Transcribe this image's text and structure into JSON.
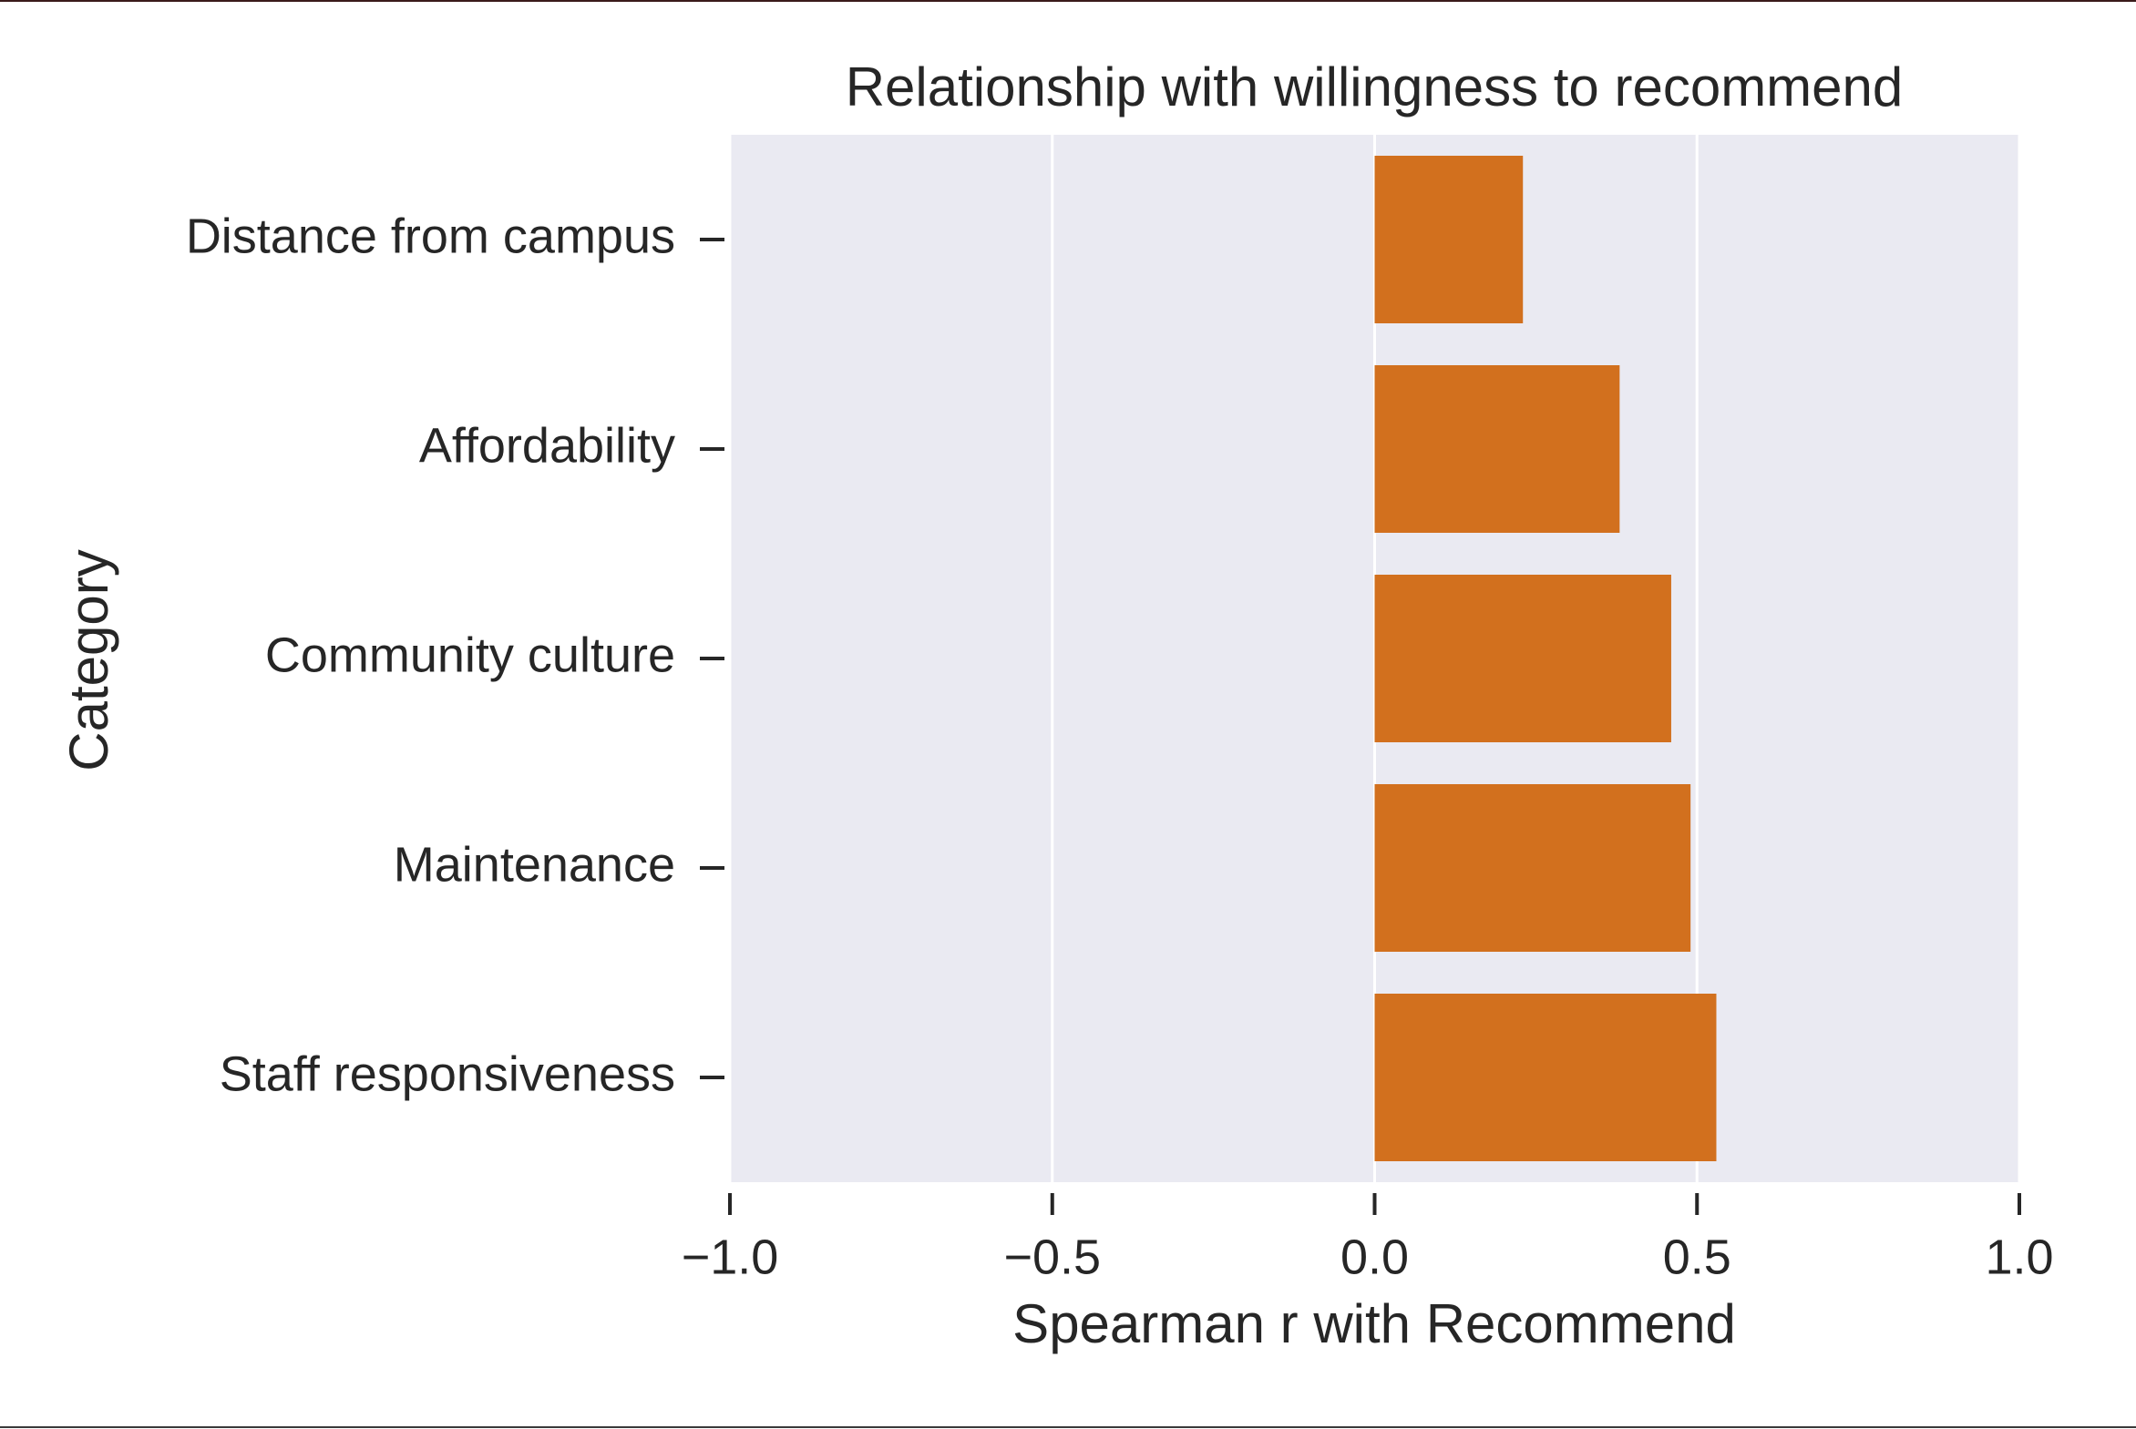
{
  "chart_data": {
    "type": "barh",
    "title": "Relationship with willingness to recommend",
    "xlabel": "Spearman r with Recommend",
    "ylabel": "Category",
    "categories": [
      "Distance from campus",
      "Affordability",
      "Community culture",
      "Maintenance",
      "Staff responsiveness"
    ],
    "values": [
      0.23,
      0.38,
      0.46,
      0.49,
      0.53
    ],
    "color": "#d2701e",
    "xlim": [
      -1.0,
      1.0
    ],
    "xticks": [
      {
        "value": -1.0,
        "label": "−1.0"
      },
      {
        "value": -0.5,
        "label": "−0.5"
      },
      {
        "value": 0,
        "label": "0.0"
      },
      {
        "value": 0.5,
        "label": "0.5"
      },
      {
        "value": 1.0,
        "label": "1.0"
      }
    ],
    "grid": true
  }
}
